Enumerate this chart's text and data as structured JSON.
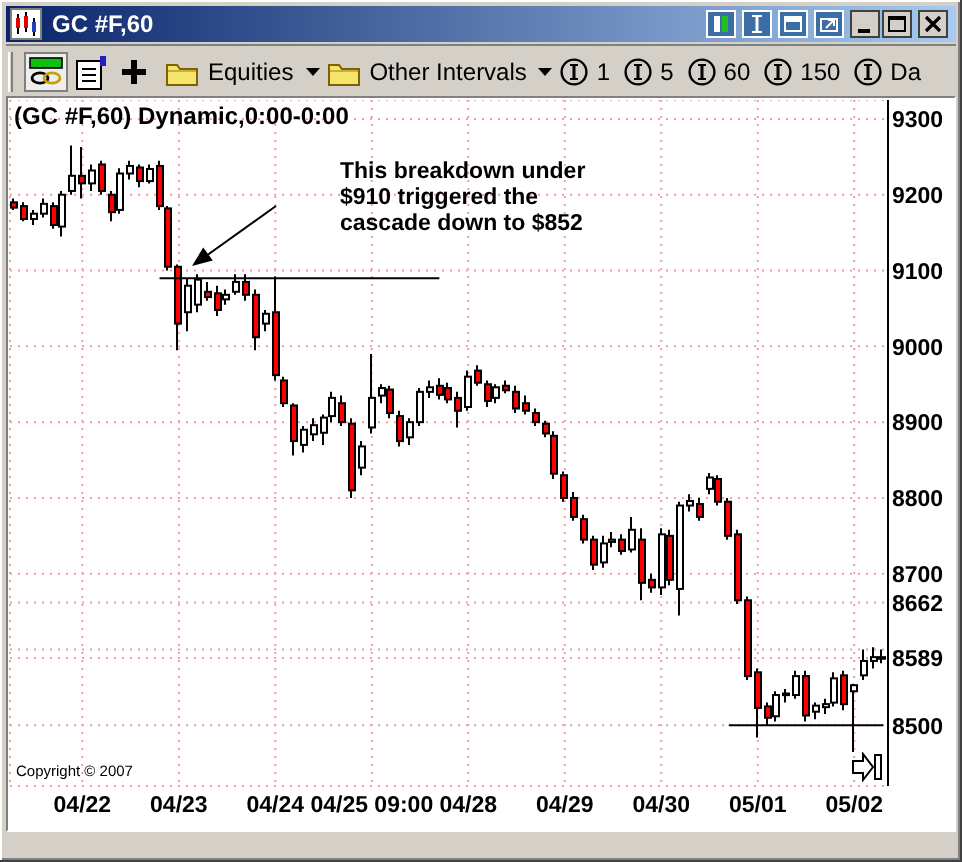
{
  "chart_data": {
    "type": "candlestick",
    "title": "(GC #F,60) Dynamic,0:00-0:00",
    "categories": [
      null,
      null,
      null,
      null,
      null,
      null,
      null,
      "04/22",
      null,
      null,
      null,
      null,
      null,
      null,
      null,
      null,
      null,
      "04/23",
      null,
      null,
      null,
      null,
      null,
      null,
      null,
      null,
      null,
      "04/24",
      null,
      null,
      null,
      null,
      null,
      null,
      null,
      null,
      null,
      "04/25 09:00",
      null,
      null,
      null,
      null,
      null,
      null,
      null,
      null,
      null,
      "04/28",
      null,
      null,
      null,
      null,
      null,
      null,
      null,
      null,
      null,
      "04/29",
      null,
      null,
      null,
      null,
      null,
      null,
      null,
      null,
      null,
      "04/30",
      null,
      null,
      null,
      null,
      null,
      null,
      null,
      null,
      null,
      "05/01",
      null,
      null,
      null,
      null,
      null,
      null,
      null,
      null,
      null,
      "05/02",
      null,
      null,
      null
    ],
    "ohlc": [
      [
        9190,
        9195,
        9180,
        9183
      ],
      [
        9185,
        9190,
        9165,
        9168
      ],
      [
        9168,
        9180,
        9160,
        9175
      ],
      [
        9175,
        9195,
        9170,
        9188
      ],
      [
        9185,
        9190,
        9155,
        9160
      ],
      [
        9158,
        9205,
        9145,
        9200
      ],
      [
        9205,
        9265,
        9200,
        9225
      ],
      [
        9225,
        9263,
        9195,
        9215
      ],
      [
        9215,
        9240,
        9205,
        9232
      ],
      [
        9240,
        9245,
        9200,
        9205
      ],
      [
        9200,
        9205,
        9165,
        9177
      ],
      [
        9180,
        9235,
        9175,
        9228
      ],
      [
        9228,
        9245,
        9220,
        9238
      ],
      [
        9236,
        9240,
        9210,
        9218
      ],
      [
        9218,
        9240,
        9215,
        9234
      ],
      [
        9238,
        9245,
        9180,
        9185
      ],
      [
        9182,
        9185,
        9100,
        9105
      ],
      [
        9105,
        9108,
        8995,
        9030
      ],
      [
        9045,
        9090,
        9020,
        9080
      ],
      [
        9055,
        9095,
        9045,
        9088
      ],
      [
        9072,
        9085,
        9060,
        9065
      ],
      [
        9070,
        9080,
        9040,
        9048
      ],
      [
        9062,
        9075,
        9055,
        9068
      ],
      [
        9072,
        9095,
        9068,
        9085
      ],
      [
        9085,
        9095,
        9060,
        9068
      ],
      [
        9068,
        9075,
        8995,
        9012
      ],
      [
        9030,
        9048,
        9020,
        9043
      ],
      [
        9045,
        9092,
        8955,
        8962
      ],
      [
        8955,
        8960,
        8920,
        8925
      ],
      [
        8922,
        8925,
        8856,
        8875
      ],
      [
        8870,
        8895,
        8860,
        8890
      ],
      [
        8884,
        8905,
        8875,
        8896
      ],
      [
        8886,
        8910,
        8870,
        8906
      ],
      [
        8908,
        8940,
        8900,
        8932
      ],
      [
        8925,
        8935,
        8895,
        8900
      ],
      [
        8898,
        8905,
        8800,
        8810
      ],
      [
        8840,
        8875,
        8830,
        8868
      ],
      [
        8893,
        8990,
        8885,
        8932
      ],
      [
        8935,
        8950,
        8925,
        8945
      ],
      [
        8943,
        8948,
        8905,
        8912
      ],
      [
        8908,
        8915,
        8868,
        8875
      ],
      [
        8880,
        8905,
        8870,
        8900
      ],
      [
        8900,
        8945,
        8895,
        8940
      ],
      [
        8940,
        8955,
        8932,
        8946
      ],
      [
        8948,
        8958,
        8930,
        8936
      ],
      [
        8945,
        8952,
        8925,
        8930
      ],
      [
        8932,
        8940,
        8893,
        8915
      ],
      [
        8920,
        8968,
        8915,
        8960
      ],
      [
        8968,
        8975,
        8948,
        8952
      ],
      [
        8950,
        8955,
        8920,
        8928
      ],
      [
        8932,
        8950,
        8925,
        8946
      ],
      [
        8948,
        8955,
        8938,
        8942
      ],
      [
        8940,
        8948,
        8912,
        8918
      ],
      [
        8925,
        8935,
        8910,
        8915
      ],
      [
        8912,
        8918,
        8895,
        8900
      ],
      [
        8898,
        8902,
        8880,
        8885
      ],
      [
        8882,
        8888,
        8825,
        8832
      ],
      [
        8830,
        8835,
        8795,
        8800
      ],
      [
        8800,
        8808,
        8770,
        8775
      ],
      [
        8772,
        8778,
        8740,
        8745
      ],
      [
        8745,
        8750,
        8705,
        8712
      ],
      [
        8715,
        8750,
        8708,
        8740
      ],
      [
        8742,
        8755,
        8735,
        8745
      ],
      [
        8745,
        8752,
        8725,
        8730
      ],
      [
        8732,
        8775,
        8728,
        8758
      ],
      [
        8745,
        8760,
        8665,
        8688
      ],
      [
        8692,
        8700,
        8675,
        8682
      ],
      [
        8682,
        8760,
        8672,
        8752
      ],
      [
        8750,
        8758,
        8685,
        8692
      ],
      [
        8680,
        8795,
        8645,
        8790
      ],
      [
        8790,
        8805,
        8782,
        8796
      ],
      [
        8792,
        8800,
        8770,
        8775
      ],
      [
        8812,
        8833,
        8805,
        8827
      ],
      [
        8825,
        8830,
        8790,
        8795
      ],
      [
        8795,
        8800,
        8745,
        8750
      ],
      [
        8752,
        8758,
        8660,
        8665
      ],
      [
        8665,
        8670,
        8560,
        8565
      ],
      [
        8570,
        8575,
        8484,
        8523
      ],
      [
        8525,
        8530,
        8500,
        8510
      ],
      [
        8512,
        8545,
        8505,
        8540
      ],
      [
        8540,
        8548,
        8530,
        8542
      ],
      [
        8540,
        8572,
        8535,
        8565
      ],
      [
        8565,
        8572,
        8505,
        8513
      ],
      [
        8518,
        8530,
        8508,
        8526
      ],
      [
        8524,
        8535,
        8515,
        8528
      ],
      [
        8530,
        8570,
        8525,
        8562
      ],
      [
        8566,
        8572,
        8520,
        8528
      ],
      [
        8545,
        8555,
        8465,
        8553
      ],
      [
        8566,
        8600,
        8560,
        8585
      ],
      [
        8585,
        8603,
        8575,
        8590
      ],
      [
        8590,
        8600,
        8582,
        8589
      ]
    ],
    "colors": [
      "#ff0000",
      "#ff0000",
      "#ffffff",
      "#ffffff",
      "#ff0000",
      "#ffffff",
      "#ffffff",
      "#ff0000",
      "#ffffff",
      "#ff0000",
      "#ff0000",
      "#ffffff",
      "#ffffff",
      "#ff0000",
      "#ffffff",
      "#ff0000",
      "#ff0000",
      "#ff0000",
      "#ffffff",
      "#ffffff",
      "#ff0000",
      "#ff0000",
      "#ffffff",
      "#ffffff",
      "#ff0000",
      "#ff0000",
      "#ffffff",
      "#ff0000",
      "#ff0000",
      "#ff0000",
      "#ffffff",
      "#ffffff",
      "#ffffff",
      "#ffffff",
      "#ff0000",
      "#ff0000",
      "#ffffff",
      "#ffffff",
      "#ffffff",
      "#ff0000",
      "#ff0000",
      "#ffffff",
      "#ffffff",
      "#ffffff",
      "#ff0000",
      "#ff0000",
      "#ff0000",
      "#ffffff",
      "#ff0000",
      "#ff0000",
      "#ffffff",
      "#ff0000",
      "#ff0000",
      "#ff0000",
      "#ff0000",
      "#ff0000",
      "#ff0000",
      "#ff0000",
      "#ff0000",
      "#ff0000",
      "#ff0000",
      "#ffffff",
      "#ffffff",
      "#ff0000",
      "#ffffff",
      "#ff0000",
      "#ff0000",
      "#ffffff",
      "#ff0000",
      "#ffffff",
      "#ffffff",
      "#ff0000",
      "#ffffff",
      "#ff0000",
      "#ff0000",
      "#ff0000",
      "#ff0000",
      "#ff0000",
      "#ff0000",
      "#ffffff",
      "#ffffff",
      "#ffffff",
      "#ff0000",
      "#ffffff",
      "#ffffff",
      "#ffffff",
      "#ff0000",
      "#ffffff",
      "#ffffff",
      "#ffffff",
      "#ff0000"
    ],
    "series": [
      {
        "type": "line",
        "color": "#000000",
        "values": [
          null,
          null,
          null,
          null,
          null,
          null,
          null,
          null,
          null,
          null,
          null,
          null,
          null,
          null,
          null,
          9090,
          9090,
          9090,
          9090,
          9090,
          9090,
          9090,
          9090,
          9090,
          9090,
          9090,
          9090,
          9090,
          9090,
          9090,
          9090,
          9090,
          9090,
          9090,
          9090,
          9090,
          9090,
          9090,
          9090,
          9090,
          9090,
          9090,
          9090,
          9090,
          9090,
          null,
          null,
          null,
          null,
          null,
          null,
          null,
          null,
          null,
          null,
          null,
          null,
          null,
          null,
          null,
          null,
          null,
          null,
          null,
          null,
          null,
          null,
          null,
          null,
          null,
          null,
          null,
          null,
          null,
          null,
          null,
          null,
          null,
          null,
          null,
          null,
          null,
          null,
          null,
          null,
          null,
          null,
          null,
          null,
          null,
          null
        ]
      },
      {
        "type": "line",
        "color": "#000000",
        "values": [
          null,
          null,
          null,
          null,
          null,
          null,
          null,
          null,
          null,
          null,
          null,
          null,
          null,
          null,
          null,
          null,
          null,
          null,
          null,
          null,
          null,
          null,
          null,
          null,
          null,
          null,
          null,
          null,
          null,
          null,
          null,
          null,
          null,
          null,
          null,
          null,
          null,
          null,
          null,
          null,
          null,
          null,
          null,
          null,
          null,
          null,
          null,
          null,
          null,
          null,
          null,
          null,
          null,
          null,
          null,
          null,
          null,
          null,
          null,
          null,
          null,
          null,
          null,
          null,
          null,
          null,
          null,
          null,
          null,
          null,
          null,
          null,
          null,
          null,
          8500,
          8500,
          8500,
          8500,
          8500,
          8500,
          8500,
          8500,
          8500,
          8500,
          8500,
          8500,
          8500,
          8500,
          8500,
          8500,
          8500
        ]
      }
    ],
    "ylim": [
      8420,
      9325
    ],
    "yticks": [
      8500,
      8589,
      {
        "value": 8600,
        "label": null
      },
      8662,
      8700,
      8800,
      8900,
      9000,
      9100,
      9200,
      9300
    ],
    "grid": true,
    "annotations": [
      "GC #F,60",
      "Equities",
      "Other Intervals",
      "1",
      "5",
      "60",
      "150",
      "Da",
      "This breakdown under\n$910 triggered the\ncascade down to $852",
      "Copyright © 2007"
    ]
  }
}
